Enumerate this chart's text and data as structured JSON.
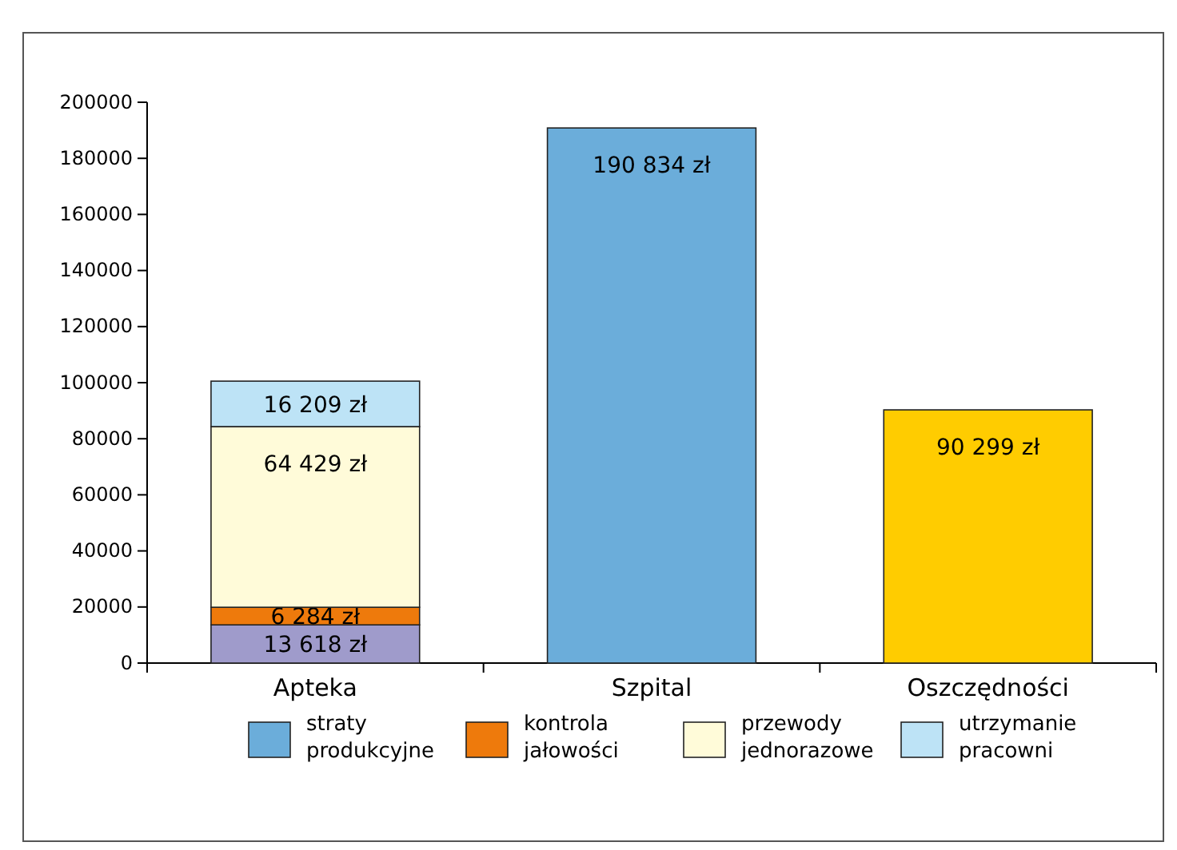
{
  "chart_data": {
    "type": "bar",
    "stacked": true,
    "categories": [
      "Apteka",
      "Szpital",
      "Oszczędności"
    ],
    "series": [
      {
        "name": "straty produkcyjne",
        "color": "#6badda",
        "values": [
          null,
          190834,
          null
        ],
        "value_labels": [
          null,
          "190 834 zł",
          null
        ]
      },
      {
        "color": "#9f9bcb",
        "values": [
          13618,
          null,
          null
        ],
        "value_labels": [
          "13 618 zł",
          null,
          null
        ]
      },
      {
        "name": "kontrola jałowości",
        "color": "#ee7a0c",
        "values": [
          6284,
          null,
          null
        ],
        "value_labels": [
          "6 284 zł",
          null,
          null
        ]
      },
      {
        "name": "przewody jednorazowe",
        "color": "#fffbd9",
        "values": [
          64429,
          null,
          null
        ],
        "value_labels": [
          "64 429 zł",
          null,
          null
        ]
      },
      {
        "name": "utrzymanie pracowni",
        "color": "#bde3f6",
        "values": [
          16209,
          null,
          null
        ],
        "value_labels": [
          "16 209 zł",
          null,
          null
        ]
      },
      {
        "color": "#ffcc00",
        "values": [
          null,
          null,
          90299
        ],
        "value_labels": [
          null,
          null,
          "90 299 zł"
        ]
      }
    ],
    "ylim": [
      0,
      200000
    ],
    "yticks": [
      0,
      20000,
      40000,
      60000,
      80000,
      100000,
      120000,
      140000,
      160000,
      180000,
      200000
    ],
    "legend": "bottom"
  }
}
